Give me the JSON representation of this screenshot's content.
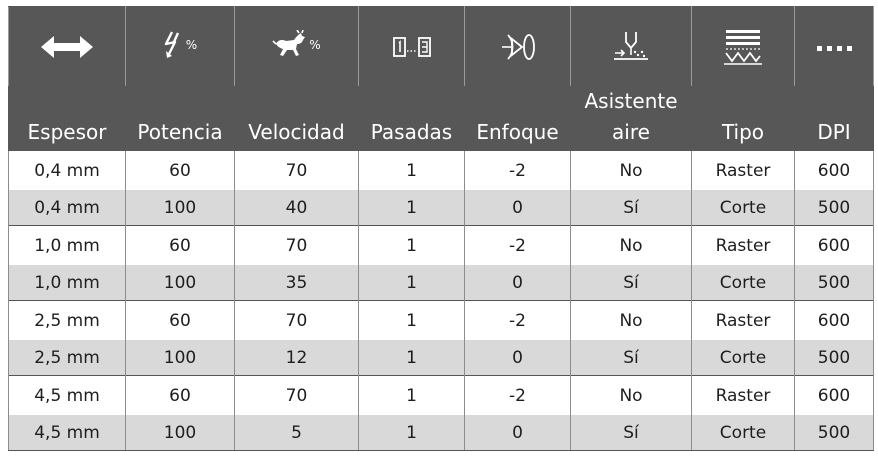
{
  "table": {
    "headers": [
      "Espesor",
      "Potencia",
      "Velocidad",
      "Pasadas",
      "Enfoque",
      "Asistente aire",
      "Tipo",
      "DPI"
    ],
    "header_icons": [
      "double-arrow-icon",
      "power-percent-icon",
      "speed-percent-icon",
      "passes-icon",
      "focus-lens-icon",
      "air-assist-icon",
      "engrave-type-icon",
      "dots-icon"
    ],
    "percent_symbol": "%",
    "rows": [
      [
        "0,4 mm",
        "60",
        "70",
        "1",
        "-2",
        "No",
        "Raster",
        "600"
      ],
      [
        "0,4 mm",
        "100",
        "40",
        "1",
        "0",
        "Sí",
        "Corte",
        "500"
      ],
      [
        "1,0 mm",
        "60",
        "70",
        "1",
        "-2",
        "No",
        "Raster",
        "600"
      ],
      [
        "1,0 mm",
        "100",
        "35",
        "1",
        "0",
        "Sí",
        "Corte",
        "500"
      ],
      [
        "2,5 mm",
        "60",
        "70",
        "1",
        "-2",
        "No",
        "Raster",
        "600"
      ],
      [
        "2,5 mm",
        "100",
        "12",
        "1",
        "0",
        "Sí",
        "Corte",
        "500"
      ],
      [
        "4,5 mm",
        "60",
        "70",
        "1",
        "-2",
        "No",
        "Raster",
        "600"
      ],
      [
        "4,5 mm",
        "100",
        "5",
        "1",
        "0",
        "Sí",
        "Corte",
        "500"
      ]
    ]
  },
  "colors": {
    "header_bg": "#575757",
    "header_text": "#ffffff",
    "row_alt_bg": "#d9d9d9",
    "row_bg": "#ffffff"
  }
}
